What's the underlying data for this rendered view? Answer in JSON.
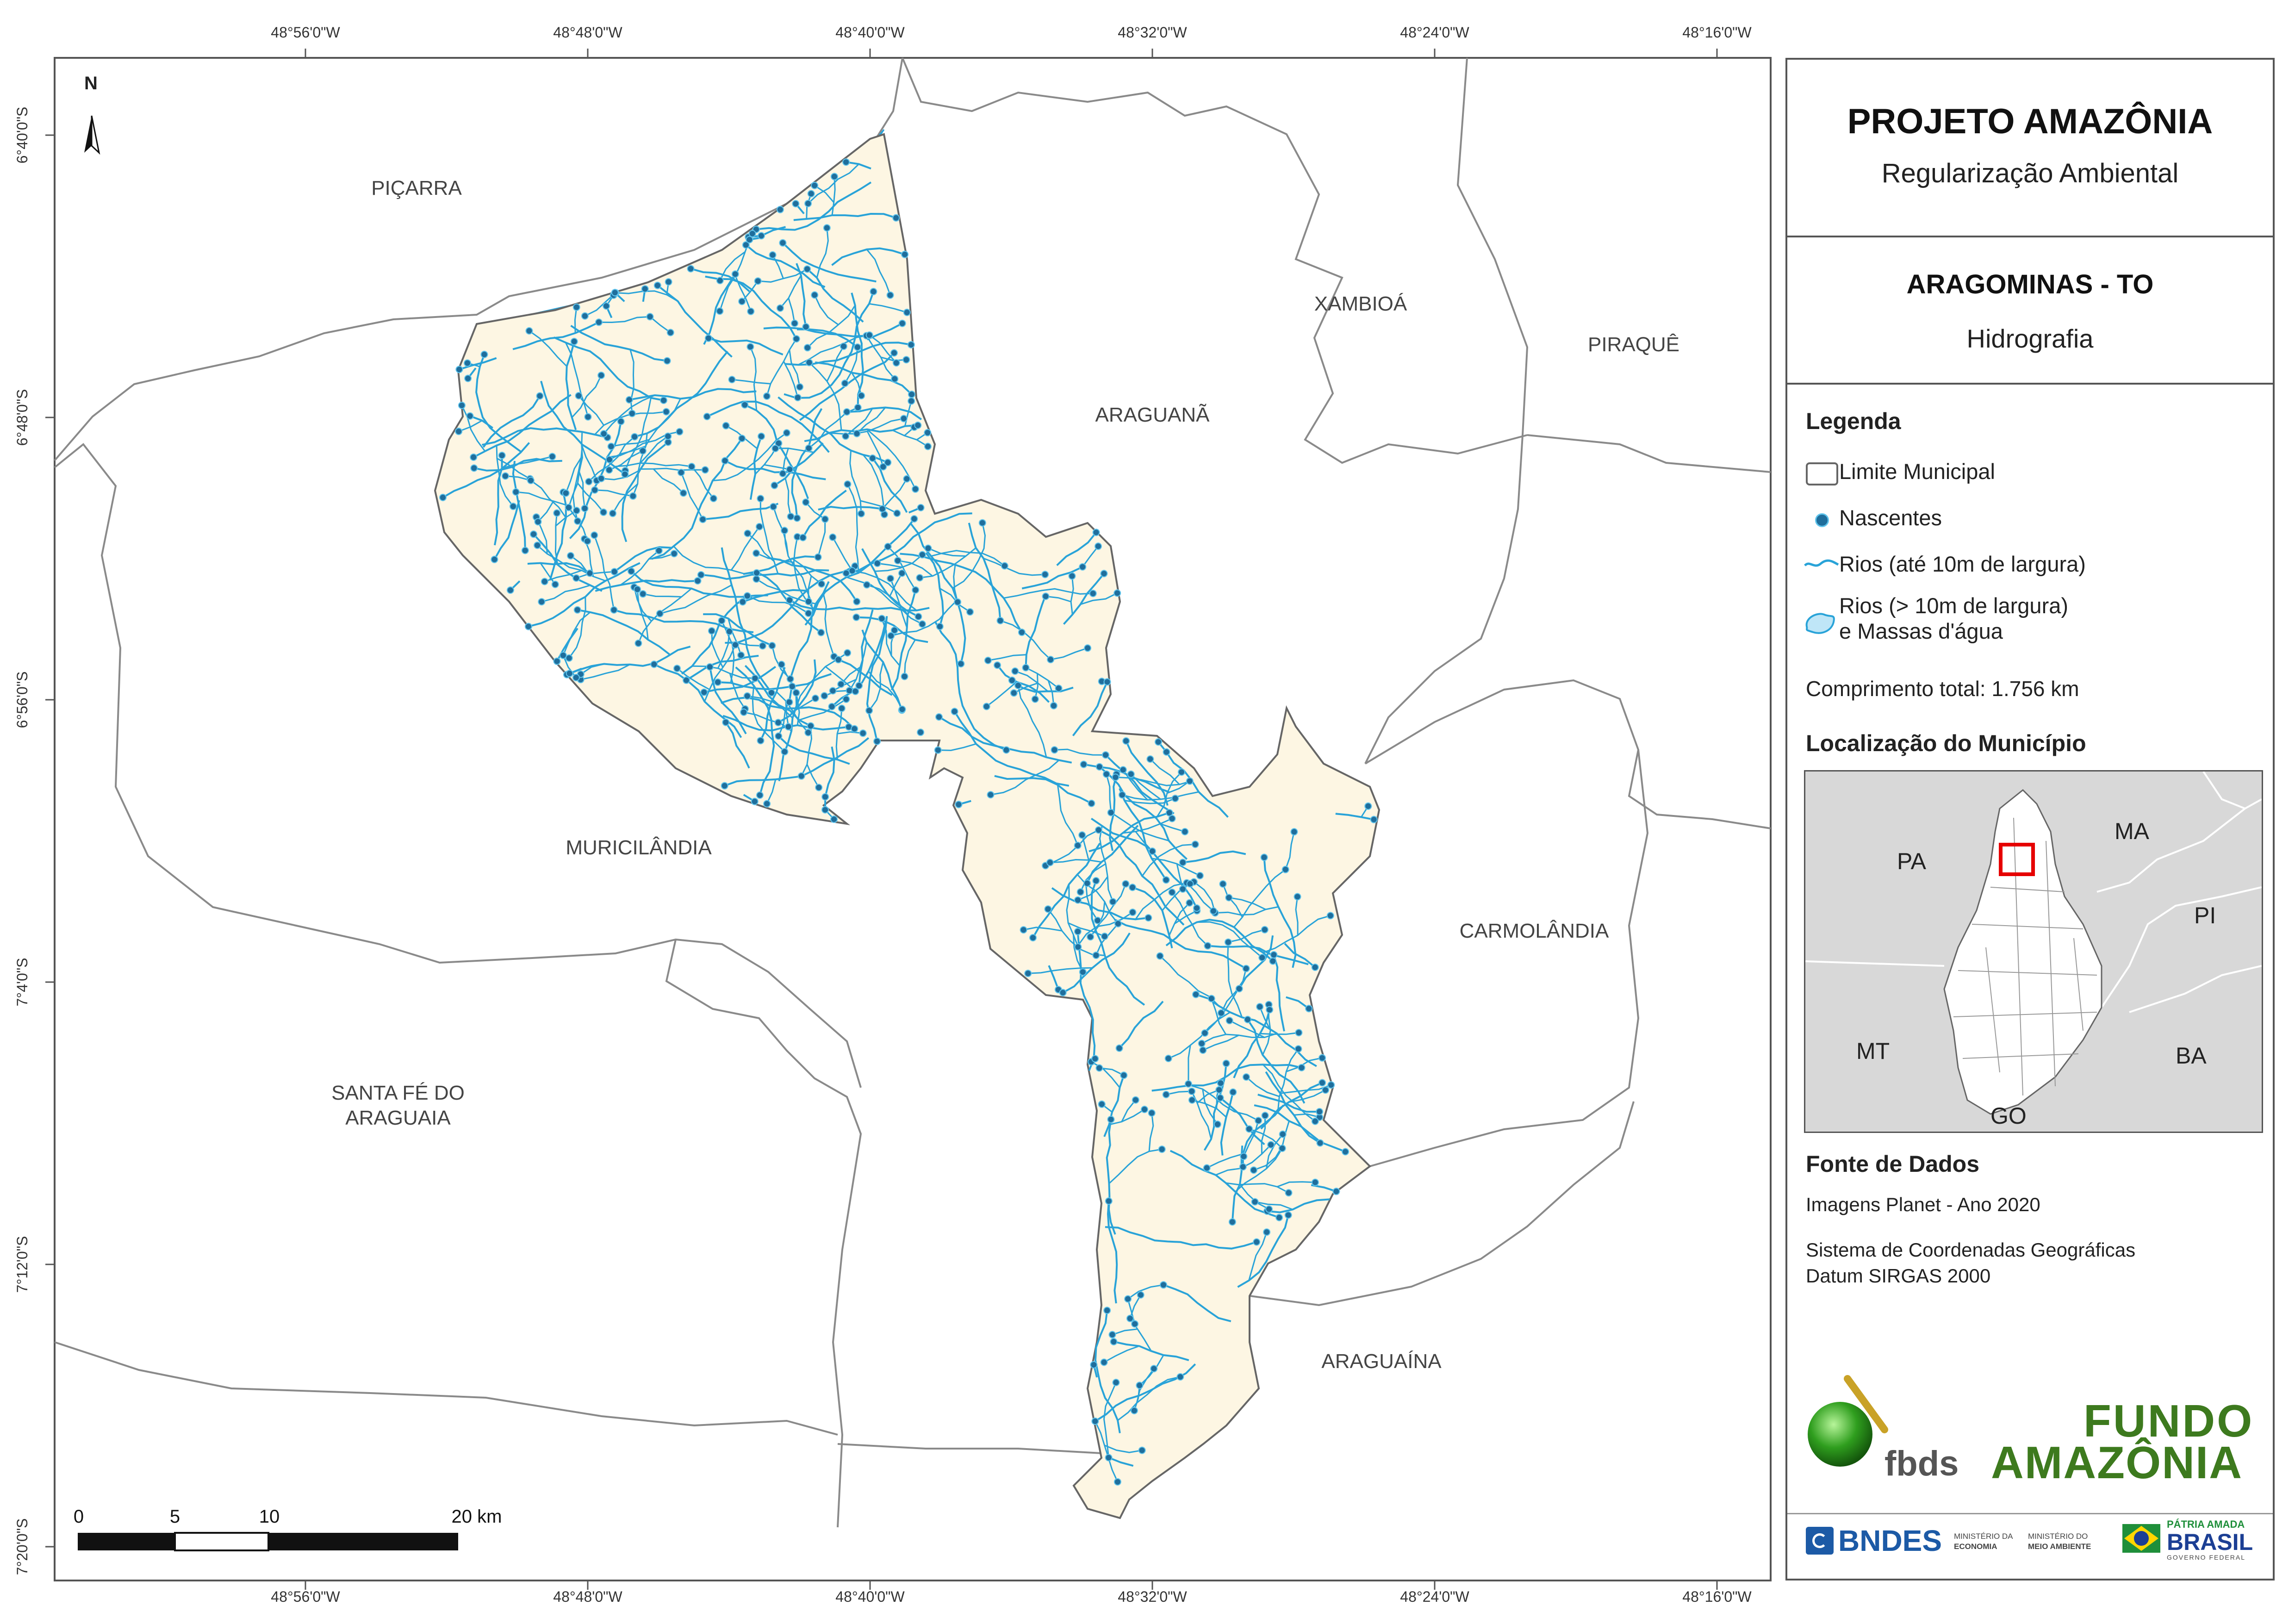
{
  "coordinates": {
    "longitudes": [
      "48°56'0\"W",
      "48°48'0\"W",
      "48°40'0\"W",
      "48°32'0\"W",
      "48°24'0\"W",
      "48°16'0\"W"
    ],
    "latitudes": [
      "6°40'0\"S",
      "6°48'0\"S",
      "6°56'0\"S",
      "7°4'0\"S",
      "7°12'0\"S",
      "7°20'0\"S"
    ]
  },
  "map": {
    "north_label": "N",
    "municipalities": {
      "picarra": "PIÇARRA",
      "xambioa": "XAMBIOÁ",
      "piraque": "PIRAQUÊ",
      "araguana": "ARAGUANÃ",
      "muricilandia": "MURICILÂNDIA",
      "carmolandia": "CARMOLÂNDIA",
      "santa_fe_1": "SANTA FÉ DO",
      "santa_fe_2": "ARAGUAIA",
      "araguaina": "ARAGUAÍNA"
    },
    "scale_bar": {
      "ticks": [
        "0",
        "5",
        "10",
        "20 km"
      ]
    }
  },
  "panel": {
    "project_title": "PROJETO AMAZÔNIA",
    "project_subtitle": "Regularização Ambiental",
    "municipality_title": "ARAGOMINAS - TO",
    "theme": "Hidrografia",
    "legend_heading": "Legenda",
    "legend": {
      "limit": "Limite Municipal",
      "springs": "Nascentes",
      "rivers_small": "Rios (até 10m de largura)",
      "rivers_large_1": "Rios (> 10m de largura)",
      "rivers_large_2": "e Massas d'água"
    },
    "total_length": "Comprimento total: 1.756 km",
    "location_heading": "Localização do Município",
    "inset_labels": {
      "pa": "PA",
      "ma": "MA",
      "pi": "PI",
      "mt": "MT",
      "ba": "BA",
      "go": "GO"
    },
    "source_heading": "Fonte de Dados",
    "source_line1": "Imagens Planet - Ano 2020",
    "source_line2": "Sistema de Coordenadas Geográficas",
    "source_line3": "Datum SIRGAS 2000",
    "logos": {
      "fbds": "fbds",
      "fundo_1": "FUNDO",
      "fundo_2": "AMAZÔNIA",
      "bndes": "BNDES",
      "min_economia_1": "MINISTÉRIO DA",
      "min_economia_2": "ECONOMIA",
      "min_ambiente_1": "MINISTÉRIO DO",
      "min_ambiente_2": "MEIO AMBIENTE",
      "patria_1": "PÁTRIA AMADA",
      "patria_2": "BRASIL",
      "patria_3": "GOVERNO FEDERAL"
    }
  },
  "colors": {
    "frame": "#555555",
    "boundary": "#8a8a8a",
    "municipality_fill": "#fdf6e3",
    "river": "#29a3d8",
    "spring": "#1f6e9c",
    "water": "#bfe6f7",
    "inset_bg": "#d8d8d8",
    "highlight": "#e60000",
    "fbds_green": "#2f9e1e",
    "fundo_green": "#3d7a1e",
    "bndes_blue": "#1c5aa6"
  }
}
